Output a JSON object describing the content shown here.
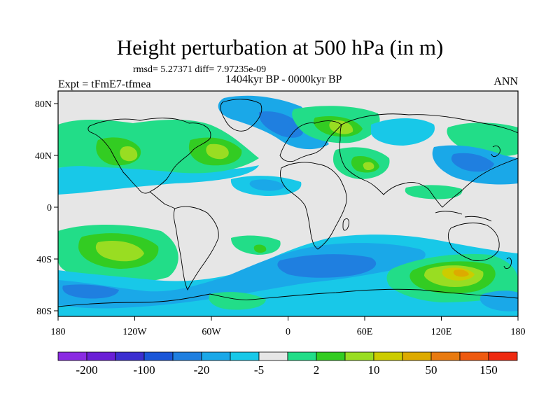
{
  "title": "Height perturbation at 500 hPa (in m)",
  "stats": "rmsd= 5.27371  diff= 7.97235e-09",
  "experiment": "Expt = tFmE7-tfmea",
  "period": "1404kyr BP - 0000kyr BP",
  "season": "ANN",
  "axes": {
    "x_ticks": [
      "180",
      "120W",
      "60W",
      "0",
      "60E",
      "120E",
      "180"
    ],
    "y_ticks": [
      "80N",
      "40N",
      "0",
      "40S",
      "80S"
    ]
  },
  "colorbar": {
    "colors": [
      "#8a2be2",
      "#6a1fd6",
      "#3b2fd0",
      "#1a56d8",
      "#1f7fe0",
      "#1aa8e8",
      "#18c8e8",
      "#e6e6e6",
      "#22dd88",
      "#33cc22",
      "#99dd22",
      "#cccc00",
      "#ddaa00",
      "#e87a10",
      "#ee5a10",
      "#ee2a10"
    ],
    "labels": [
      "-200",
      "-100",
      "-20",
      "-5",
      "2",
      "10",
      "50",
      "150"
    ]
  },
  "anomaly_colors": {
    "land_bg": "#e6e6e6",
    "neg_light": "#18c8e8",
    "neg_mid": "#1aa8e8",
    "neg_strong": "#1f7fe0",
    "pos_light": "#22dd88",
    "pos_mid": "#33cc22",
    "pos_strong": "#99dd22",
    "pos_peak": "#cccc00",
    "pos_max": "#ddaa00"
  }
}
